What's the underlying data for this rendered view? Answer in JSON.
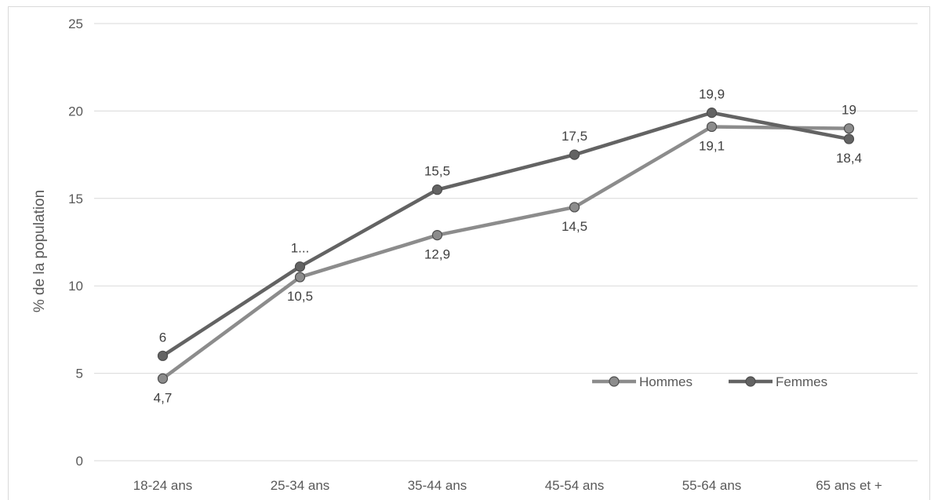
{
  "chart_data": {
    "type": "line",
    "title": "",
    "xlabel": "",
    "ylabel": "% de la population",
    "ylim": [
      0,
      25
    ],
    "yticks": [
      0,
      5,
      10,
      15,
      20,
      25
    ],
    "grid": true,
    "legend_position": "inside-bottom-right",
    "categories": [
      "18-24 ans",
      "25-34 ans",
      "35-44 ans",
      "45-54 ans",
      "55-64 ans",
      "65 ans et +"
    ],
    "series": [
      {
        "name": "Hommes",
        "color": "#8c8c8c",
        "values": [
          4.7,
          10.5,
          12.9,
          14.5,
          19.1,
          19
        ],
        "labels": [
          "4,7",
          "10,5",
          "12,9",
          "14,5",
          "19,1",
          "19"
        ],
        "label_positions": [
          "below",
          "below",
          "below",
          "below",
          "below",
          "above"
        ]
      },
      {
        "name": "Femmes",
        "color": "#636363",
        "values": [
          6,
          11.1,
          15.5,
          17.5,
          19.9,
          18.4
        ],
        "labels": [
          "6",
          "1...",
          "15,5",
          "17,5",
          "19,9",
          "18,4"
        ],
        "label_positions": [
          "above",
          "above",
          "above",
          "above",
          "above",
          "below"
        ]
      }
    ]
  }
}
